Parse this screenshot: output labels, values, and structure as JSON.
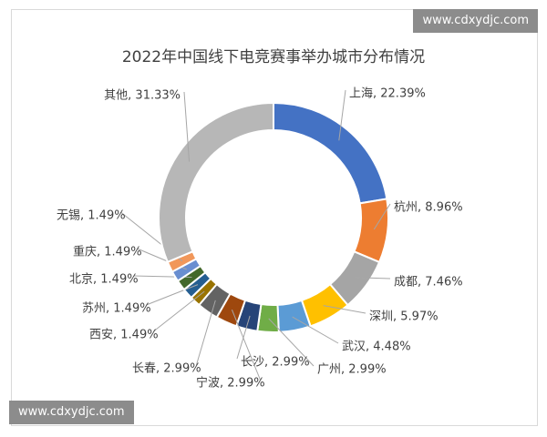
{
  "watermark": "www.cdxydjc.com",
  "chart_data": {
    "type": "pie",
    "donut": true,
    "title": "2022年中国线下电竞赛事举办城市分布情况",
    "legend": "none",
    "categories": [
      "上海",
      "杭州",
      "成都",
      "深圳",
      "武汉",
      "广州",
      "长沙",
      "宁波",
      "长春",
      "西安",
      "苏州",
      "北京",
      "重庆",
      "无锡",
      "其他"
    ],
    "values": [
      22.39,
      8.96,
      7.46,
      5.97,
      4.48,
      2.99,
      2.99,
      2.99,
      2.99,
      1.49,
      1.49,
      1.49,
      1.49,
      1.49,
      31.33
    ],
    "data_labels": [
      "上海, 22.39%",
      "杭州, 8.96%",
      "成都, 7.46%",
      "深圳, 5.97%",
      "武汉, 4.48%",
      "广州, 2.99%",
      "长沙, 2.99%",
      "宁波, 2.99%",
      "长春, 2.99%",
      "西安, 1.49%",
      "苏州, 1.49%",
      "北京, 1.49%",
      "重庆, 1.49%",
      "无锡, 1.49%",
      "其他, 31.33%"
    ],
    "colors": [
      "#4472C4",
      "#ED7D31",
      "#A5A5A5",
      "#FFC000",
      "#5B9BD5",
      "#70AD47",
      "#264478",
      "#9E480E",
      "#636363",
      "#997300",
      "#255E91",
      "#43682B",
      "#698ED0",
      "#F1975A",
      "#B7B7B7"
    ]
  }
}
